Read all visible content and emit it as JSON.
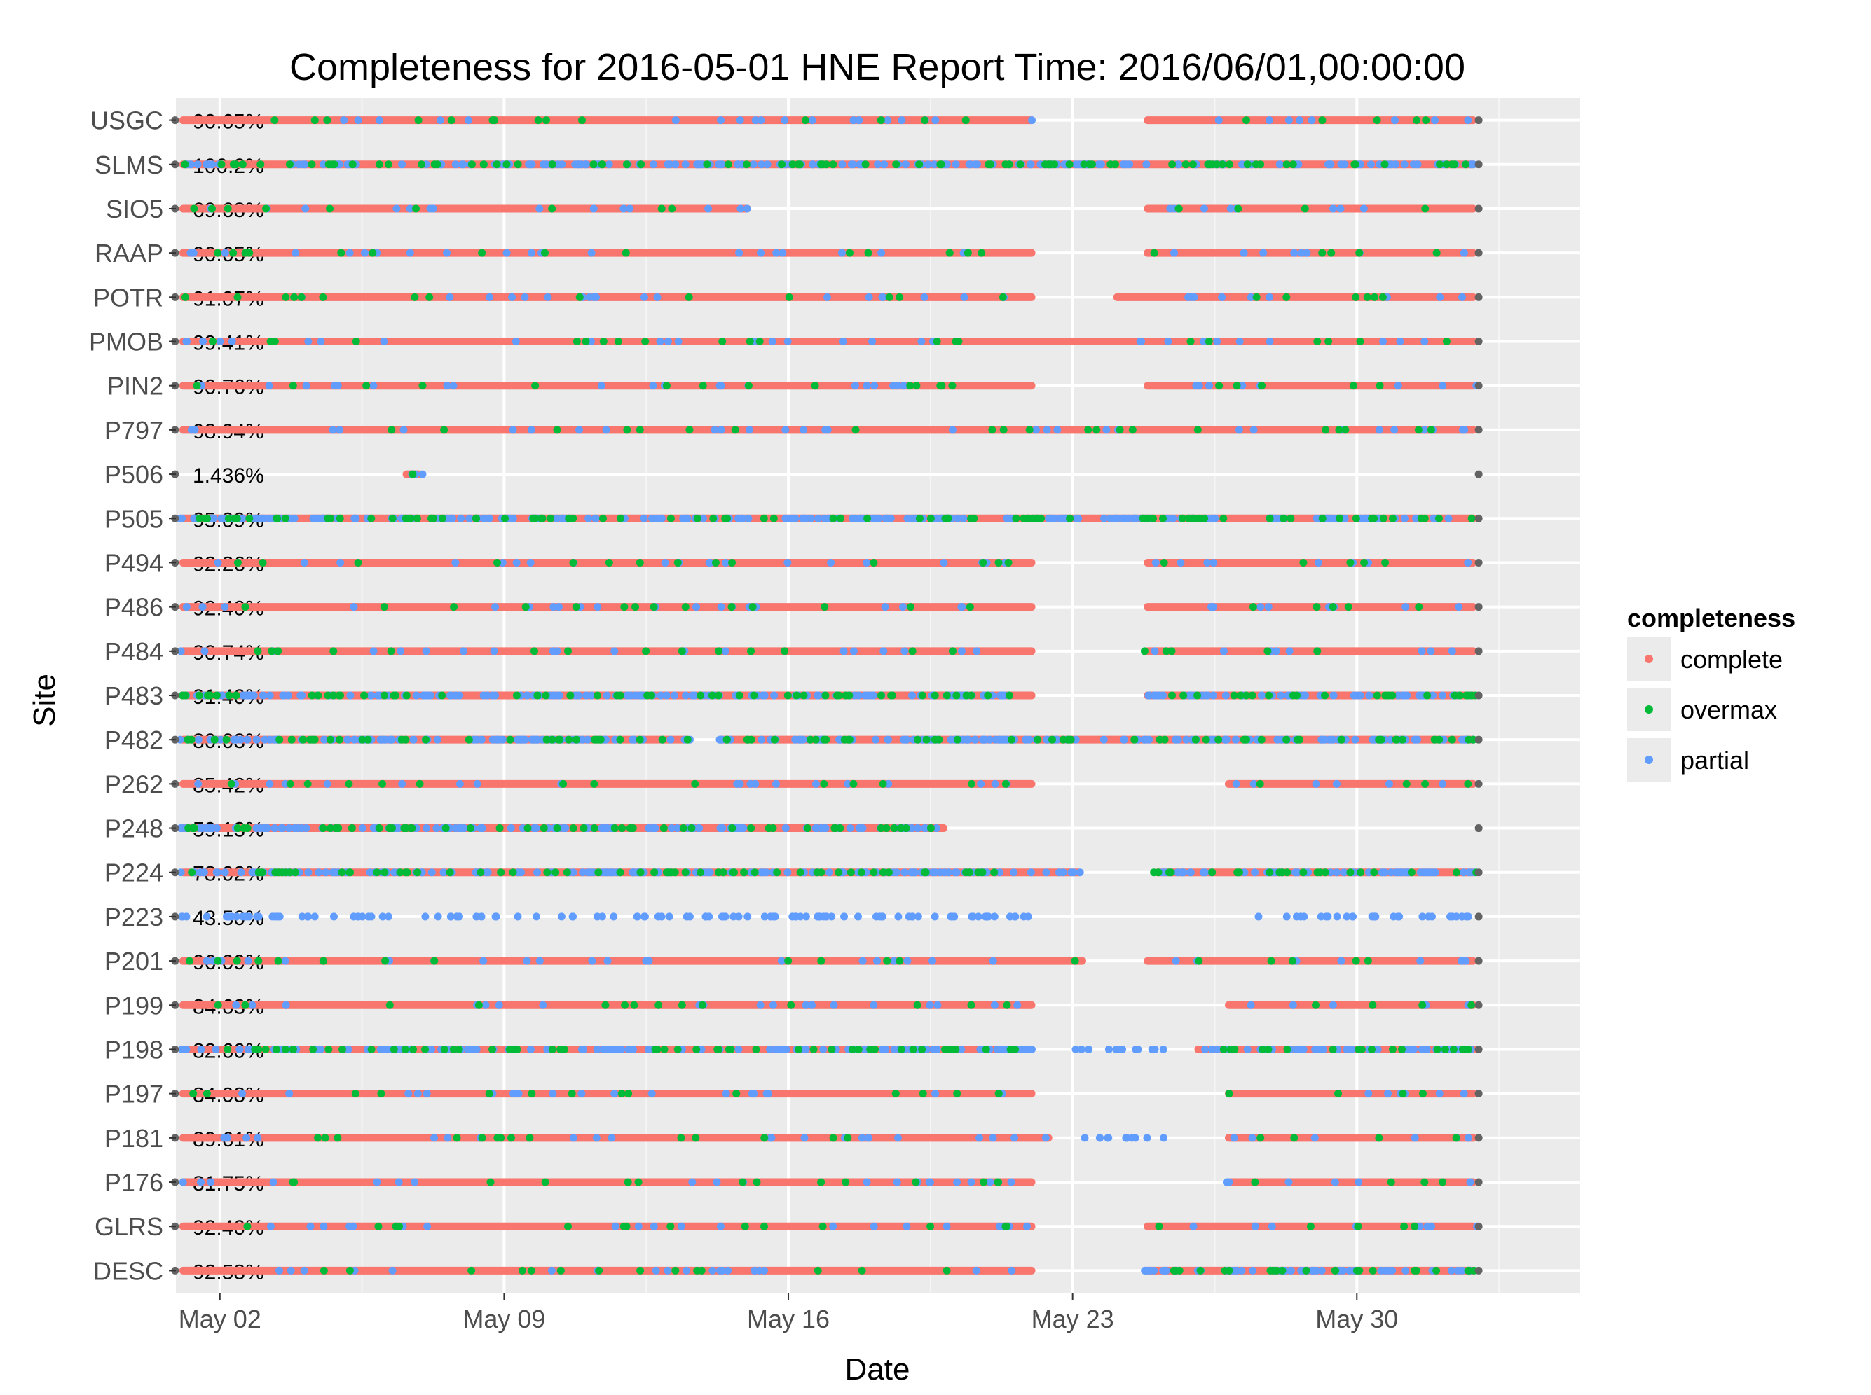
{
  "chart_data": {
    "type": "scatter",
    "title": "Completeness for  2016-05-01 HNE  Report Time:  2016/06/01,00:00:00",
    "xlabel": "Date",
    "ylabel": "Site",
    "x_ticks": [
      "May 02",
      "May 09",
      "May 16",
      "May 23",
      "May 30"
    ],
    "xlim": [
      "2016-04-30T22:00",
      "2016-06-04T12:00"
    ],
    "grid": true,
    "legend": {
      "title": "completeness",
      "position": "right",
      "entries": [
        {
          "label": "complete",
          "color": "#F8766D"
        },
        {
          "label": "overmax",
          "color": "#00BA38"
        },
        {
          "label": "partial",
          "color": "#619CFF"
        }
      ]
    },
    "sites": [
      {
        "name": "USGC",
        "label": "90.65%",
        "segments": [
          {
            "start": "2016-05-01",
            "end": "2016-05-22T02:00",
            "mix": "complete"
          },
          {
            "start": "2016-05-24T18:00",
            "end": "2016-06-01T23:00",
            "mix": "complete"
          }
        ]
      },
      {
        "name": "SLMS",
        "label": "100.2%",
        "segments": [
          {
            "start": "2016-05-01",
            "end": "2016-06-01T23:00",
            "mix": "mixed"
          }
        ]
      },
      {
        "name": "SIO5",
        "label": "69.68%",
        "segments": [
          {
            "start": "2016-05-01",
            "end": "2016-05-15T02:00",
            "mix": "complete"
          },
          {
            "start": "2016-05-24T18:00",
            "end": "2016-06-01T23:00",
            "mix": "complete"
          }
        ]
      },
      {
        "name": "RAAP",
        "label": "90.65%",
        "segments": [
          {
            "start": "2016-05-01",
            "end": "2016-05-22T02:00",
            "mix": "complete"
          },
          {
            "start": "2016-05-24T18:00",
            "end": "2016-06-01T23:00",
            "mix": "complete"
          }
        ]
      },
      {
        "name": "POTR",
        "label": "91.07%",
        "segments": [
          {
            "start": "2016-05-01",
            "end": "2016-05-22T02:00",
            "mix": "complete"
          },
          {
            "start": "2016-05-24T00:00",
            "end": "2016-06-01T23:00",
            "mix": "complete"
          }
        ]
      },
      {
        "name": "PMOB",
        "label": "99.41%",
        "segments": [
          {
            "start": "2016-05-01",
            "end": "2016-06-01T23:00",
            "mix": "complete"
          }
        ]
      },
      {
        "name": "PIN2",
        "label": "90.76%",
        "segments": [
          {
            "start": "2016-05-01",
            "end": "2016-05-22T02:00",
            "mix": "complete"
          },
          {
            "start": "2016-05-24T18:00",
            "end": "2016-06-01T23:00",
            "mix": "complete"
          }
        ]
      },
      {
        "name": "P797",
        "label": "98.94%",
        "segments": [
          {
            "start": "2016-05-01",
            "end": "2016-06-01T23:00",
            "mix": "complete"
          }
        ]
      },
      {
        "name": "P506",
        "label": "1.436%",
        "segments": [
          {
            "start": "2016-05-06T12:00",
            "end": "2016-05-07T00:00",
            "mix": "mixed"
          }
        ]
      },
      {
        "name": "P505",
        "label": "95.09%",
        "segments": [
          {
            "start": "2016-05-01",
            "end": "2016-06-01T23:00",
            "mix": "mixed"
          }
        ]
      },
      {
        "name": "P494",
        "label": "92.26%",
        "segments": [
          {
            "start": "2016-05-01",
            "end": "2016-05-22T02:00",
            "mix": "complete"
          },
          {
            "start": "2016-05-24T18:00",
            "end": "2016-06-01T23:00",
            "mix": "complete"
          }
        ]
      },
      {
        "name": "P486",
        "label": "92.40%",
        "segments": [
          {
            "start": "2016-05-01",
            "end": "2016-05-22T02:00",
            "mix": "complete"
          },
          {
            "start": "2016-05-24T18:00",
            "end": "2016-06-01T23:00",
            "mix": "complete"
          }
        ]
      },
      {
        "name": "P484",
        "label": "90.74%",
        "segments": [
          {
            "start": "2016-05-01",
            "end": "2016-05-22T02:00",
            "mix": "complete"
          },
          {
            "start": "2016-05-24T18:00",
            "end": "2016-06-01T23:00",
            "mix": "complete"
          }
        ]
      },
      {
        "name": "P483",
        "label": "91.40%",
        "segments": [
          {
            "start": "2016-05-01",
            "end": "2016-05-22T02:00",
            "mix": "mixed"
          },
          {
            "start": "2016-05-24T18:00",
            "end": "2016-06-01T23:00",
            "mix": "mixed"
          }
        ]
      },
      {
        "name": "P482",
        "label": "80.03%",
        "segments": [
          {
            "start": "2016-05-01",
            "end": "2016-05-13T14:00",
            "mix": "mixed"
          },
          {
            "start": "2016-05-14T06:00",
            "end": "2016-06-01T23:00",
            "mix": "mixed"
          }
        ]
      },
      {
        "name": "P262",
        "label": "85.42%",
        "segments": [
          {
            "start": "2016-05-01",
            "end": "2016-05-22T02:00",
            "mix": "complete"
          },
          {
            "start": "2016-05-26T18:00",
            "end": "2016-06-01T23:00",
            "mix": "complete"
          }
        ]
      },
      {
        "name": "P248",
        "label": "59.13%",
        "segments": [
          {
            "start": "2016-05-01",
            "end": "2016-05-19T22:00",
            "mix": "mixed"
          }
        ]
      },
      {
        "name": "P224",
        "label": "78.02%",
        "segments": [
          {
            "start": "2016-05-01",
            "end": "2016-05-23T06:00",
            "mix": "mixed"
          },
          {
            "start": "2016-05-25T00:00",
            "end": "2016-06-01T23:00",
            "mix": "mixed"
          }
        ]
      },
      {
        "name": "P223",
        "label": "43.50%",
        "segments": [
          {
            "start": "2016-05-01",
            "end": "2016-05-21T22:00",
            "mix": "partial"
          },
          {
            "start": "2016-05-27T12:00",
            "end": "2016-06-01T23:00",
            "mix": "partial"
          }
        ]
      },
      {
        "name": "P201",
        "label": "96.09%",
        "segments": [
          {
            "start": "2016-05-01",
            "end": "2016-05-23T08:00",
            "mix": "complete"
          },
          {
            "start": "2016-05-24T18:00",
            "end": "2016-06-01T23:00",
            "mix": "complete"
          }
        ]
      },
      {
        "name": "P199",
        "label": "84.63%",
        "segments": [
          {
            "start": "2016-05-01",
            "end": "2016-05-22T02:00",
            "mix": "complete"
          },
          {
            "start": "2016-05-26T18:00",
            "end": "2016-06-01T23:00",
            "mix": "complete"
          }
        ]
      },
      {
        "name": "P198",
        "label": "82.60%",
        "segments": [
          {
            "start": "2016-05-01",
            "end": "2016-05-22T02:00",
            "mix": "mixed"
          },
          {
            "start": "2016-05-23T00:00",
            "end": "2016-05-25T10:00",
            "mix": "partial"
          },
          {
            "start": "2016-05-26T00:00",
            "end": "2016-06-01T23:00",
            "mix": "mixed"
          }
        ]
      },
      {
        "name": "P197",
        "label": "84.08%",
        "segments": [
          {
            "start": "2016-05-01",
            "end": "2016-05-22T02:00",
            "mix": "complete"
          },
          {
            "start": "2016-05-26T18:00",
            "end": "2016-06-01T23:00",
            "mix": "complete"
          }
        ]
      },
      {
        "name": "P181",
        "label": "89.61%",
        "segments": [
          {
            "start": "2016-05-01",
            "end": "2016-05-22T12:00",
            "mix": "complete"
          },
          {
            "start": "2016-05-23T06:00",
            "end": "2016-05-25T12:00",
            "mix": "partial"
          },
          {
            "start": "2016-05-26T18:00",
            "end": "2016-06-01T23:00",
            "mix": "complete"
          }
        ]
      },
      {
        "name": "P176",
        "label": "81.75%",
        "segments": [
          {
            "start": "2016-05-01",
            "end": "2016-05-22T02:00",
            "mix": "complete"
          },
          {
            "start": "2016-05-26T18:00",
            "end": "2016-06-01T23:00",
            "mix": "complete"
          }
        ]
      },
      {
        "name": "GLRS",
        "label": "92.40%",
        "segments": [
          {
            "start": "2016-05-01",
            "end": "2016-05-22T02:00",
            "mix": "complete"
          },
          {
            "start": "2016-05-24T18:00",
            "end": "2016-06-01T23:00",
            "mix": "complete"
          }
        ]
      },
      {
        "name": "DESC",
        "label": "92.58%",
        "segments": [
          {
            "start": "2016-05-01",
            "end": "2016-05-22T02:00",
            "mix": "complete"
          },
          {
            "start": "2016-05-24T18:00",
            "end": "2016-06-01T23:00",
            "mix": "mixed"
          }
        ]
      }
    ],
    "end_marker_color": "#636363"
  }
}
